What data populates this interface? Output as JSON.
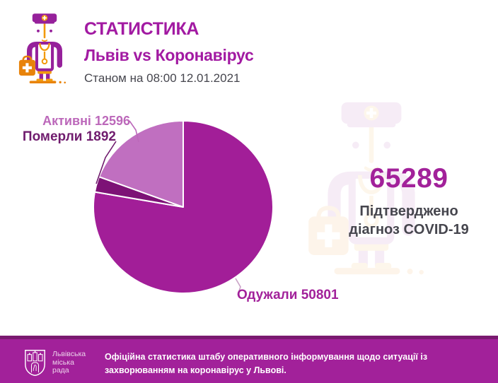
{
  "header": {
    "title": "СТАТИСТИКА",
    "subtitle": "Львів vs Коронавірус",
    "date_line": "Станом на 08:00 12.01.2021"
  },
  "stats": {
    "confirmed_value": "65289",
    "confirmed_label_line1": "Підтверджено",
    "confirmed_label_line2": "діагноз COVID-19"
  },
  "chart_data": {
    "type": "pie",
    "total": 65289,
    "start_angle_deg": 0,
    "direction": "clockwise",
    "legend_position": "callout-labels",
    "slices": [
      {
        "label": "Одужали",
        "value": 50801,
        "color": "#A21E98",
        "label_text": "Одужали 50801"
      },
      {
        "label": "Померли",
        "value": 1892,
        "color": "#7D1276",
        "label_text": "Померли 1892"
      },
      {
        "label": "Активні",
        "value": 12596,
        "color": "#C06FC0",
        "label_text": "Активні 12596"
      }
    ]
  },
  "footer": {
    "org_line1": "Львівська",
    "org_line2": "міська",
    "org_line3": "рада",
    "text": "Офіційна статистика штабу оперативного інформування щодо ситуації із захворюванням на коронавірус у Львові."
  },
  "colors": {
    "brand_magenta": "#A2219A",
    "title_purple": "#A21AA2",
    "slice_recovered": "#A21E98",
    "slice_deaths": "#7D1276",
    "slice_active": "#C06FC0",
    "label_active": "#BC68BA",
    "label_deaths": "#701C6E",
    "text_dark": "#46464E",
    "footer_strip": "#7A1A70",
    "icon_amber": "#F29A0D",
    "icon_orange": "#E8830A",
    "icon_purple": "#96219B"
  }
}
